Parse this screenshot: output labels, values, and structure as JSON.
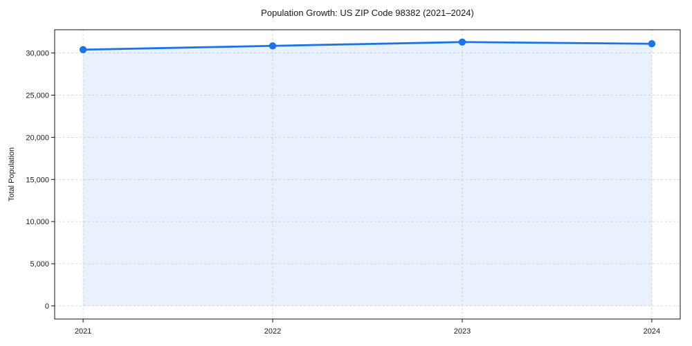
{
  "chart_data": {
    "type": "line",
    "title": "Population Growth: US ZIP Code 98382 (2021–2024)",
    "xlabel": "",
    "ylabel": "Total Population",
    "categories": [
      "2021",
      "2022",
      "2023",
      "2024"
    ],
    "x": [
      2021,
      2022,
      2023,
      2024
    ],
    "series": [
      {
        "name": "Total Population",
        "values": [
          30400,
          30850,
          31300,
          31100
        ]
      }
    ],
    "area_fill": true,
    "area_baseline": 0,
    "markers": true,
    "legend": "none",
    "grid": "dashed-both-axes",
    "xlim": [
      2020.85,
      2024.15
    ],
    "ylim": [
      -1560,
      32760
    ],
    "yticks": [
      0,
      5000,
      10000,
      15000,
      20000,
      25000,
      30000
    ],
    "ytick_labels": [
      "0",
      "5,000",
      "10,000",
      "15,000",
      "20,000",
      "25,000",
      "30,000"
    ],
    "colors": {
      "line": "#1a73e8",
      "marker": "#1a73e8",
      "area": "#1a73e8",
      "area_opacity": 0.1,
      "grid": "#d4d4d4",
      "spine": "#111111",
      "tick": "#111111",
      "text": "#1a1a1a",
      "background": "#ffffff"
    }
  }
}
